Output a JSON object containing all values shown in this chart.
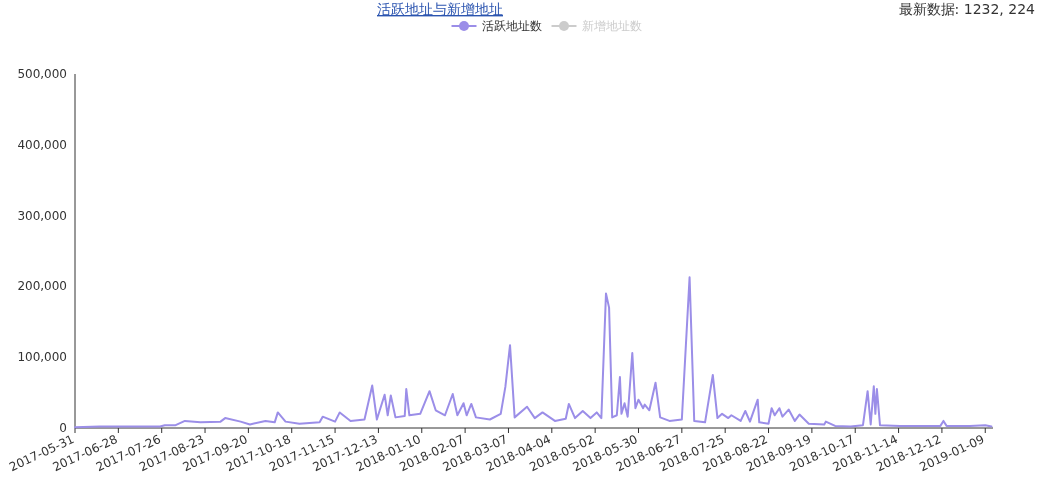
{
  "chart_data": {
    "type": "line",
    "title": "活跃地址与新增地址",
    "annotations": [
      "最新数据: 1232, 224"
    ],
    "x": [
      "2017-05-31",
      "2017-06-16",
      "2017-07-25",
      "2017-07-28",
      "2017-08-04",
      "2017-08-10",
      "2017-08-20",
      "2017-09-02",
      "2017-09-05",
      "2017-09-15",
      "2017-09-21",
      "2017-10-01",
      "2017-10-07",
      "2017-10-09",
      "2017-10-14",
      "2017-10-23",
      "2017-11-05",
      "2017-11-07",
      "2017-11-15",
      "2017-11-18",
      "2017-11-25",
      "2017-12-04",
      "2017-12-09",
      "2017-12-12",
      "2017-12-17",
      "2017-12-19",
      "2017-12-21",
      "2017-12-24",
      "2017-12-30",
      "2017-12-31",
      "2018-01-02",
      "2018-01-09",
      "2018-01-15",
      "2018-01-19",
      "2018-01-25",
      "2018-01-30",
      "2018-02-02",
      "2018-02-06",
      "2018-02-08",
      "2018-02-11",
      "2018-02-14",
      "2018-02-23",
      "2018-03-02",
      "2018-03-05",
      "2018-03-08",
      "2018-03-11",
      "2018-03-19",
      "2018-03-24",
      "2018-03-29",
      "2018-04-06",
      "2018-04-13",
      "2018-04-15",
      "2018-04-19",
      "2018-04-24",
      "2018-04-29",
      "2018-05-03",
      "2018-05-06",
      "2018-05-09",
      "2018-05-11",
      "2018-05-13",
      "2018-05-16",
      "2018-05-18",
      "2018-05-19",
      "2018-05-21",
      "2018-05-23",
      "2018-05-26",
      "2018-05-28",
      "2018-05-30",
      "2018-06-02",
      "2018-06-03",
      "2018-06-06",
      "2018-06-10",
      "2018-06-13",
      "2018-06-19",
      "2018-06-27",
      "2018-07-02",
      "2018-07-05",
      "2018-07-12",
      "2018-07-17",
      "2018-07-20",
      "2018-07-23",
      "2018-07-27",
      "2018-07-29",
      "2018-08-04",
      "2018-08-07",
      "2018-08-10",
      "2018-08-15",
      "2018-08-16",
      "2018-08-22",
      "2018-08-24",
      "2018-08-26",
      "2018-08-29",
      "2018-08-31",
      "2018-09-04",
      "2018-09-08",
      "2018-09-11",
      "2018-09-17",
      "2018-09-27",
      "2018-09-28",
      "2018-10-04",
      "2018-10-14",
      "2018-10-22",
      "2018-10-25",
      "2018-10-27",
      "2018-10-29",
      "2018-10-30",
      "2018-10-31",
      "2018-11-02",
      "2018-11-15",
      "2018-12-11",
      "2018-12-13",
      "2018-12-15",
      "2018-12-30",
      "2019-01-09",
      "2019-01-13"
    ],
    "series": [
      {
        "name": "活跃地址数",
        "color": "#9b8ee8",
        "values": [
          1000,
          2000,
          2000,
          4000,
          4000,
          10000,
          8000,
          9000,
          14000,
          9000,
          5000,
          10000,
          8000,
          22000,
          9000,
          6000,
          8000,
          16000,
          9000,
          22000,
          10000,
          12000,
          60000,
          12000,
          47000,
          18000,
          46000,
          15000,
          17000,
          55000,
          18000,
          20000,
          52000,
          25000,
          18000,
          48000,
          18000,
          35000,
          18000,
          34000,
          15000,
          12000,
          20000,
          58000,
          117000,
          15000,
          30000,
          14000,
          22000,
          10000,
          13000,
          34000,
          14000,
          24000,
          14000,
          22000,
          14000,
          190000,
          170000,
          15000,
          18000,
          72000,
          20000,
          35000,
          16000,
          106000,
          28000,
          40000,
          28000,
          33000,
          25000,
          64000,
          15000,
          10000,
          12000,
          213000,
          10000,
          8000,
          75000,
          14000,
          20000,
          14000,
          18000,
          10000,
          24000,
          9000,
          40000,
          8000,
          6000,
          28000,
          18000,
          28000,
          16000,
          26000,
          10000,
          19000,
          6000,
          5000,
          9000,
          3000,
          2000,
          4000,
          52000,
          5000,
          59000,
          20000,
          55000,
          4000,
          3000,
          3000,
          10000,
          3000,
          3000,
          4000,
          2000
        ]
      },
      {
        "name": "新增地址数",
        "color": "#cccccc",
        "values": [
          null,
          null,
          null,
          null,
          null,
          null,
          null,
          null,
          null,
          null,
          null,
          null,
          null,
          null,
          null,
          null,
          null,
          null,
          null,
          null,
          null,
          null,
          null,
          null,
          null,
          null,
          null,
          null,
          null,
          null,
          null,
          null,
          null,
          null,
          null,
          null,
          null,
          null,
          null,
          null,
          null,
          null,
          null,
          null,
          null,
          null,
          null,
          null,
          null,
          null,
          null,
          null,
          null,
          null,
          null,
          null,
          null,
          null,
          null,
          null,
          null,
          null,
          null,
          null,
          null,
          null,
          null,
          null,
          null,
          null,
          null,
          null,
          null,
          null,
          null,
          null,
          null,
          null,
          null,
          null,
          null,
          null,
          null,
          null,
          null,
          null,
          null,
          null,
          null,
          null,
          null,
          null,
          null,
          null,
          null,
          null,
          null,
          null,
          null,
          null,
          null,
          null,
          null,
          null,
          null,
          null,
          null,
          null,
          null,
          null,
          null,
          null,
          null,
          null,
          null
        ]
      }
    ],
    "xlim": [
      "2017-05-31",
      "2019-01-14"
    ],
    "xticks": [
      "2017-05-31",
      "2017-06-28",
      "2017-07-26",
      "2017-08-23",
      "2017-09-20",
      "2017-10-18",
      "2017-11-15",
      "2017-12-13",
      "2018-01-10",
      "2018-02-07",
      "2018-03-07",
      "2018-04-04",
      "2018-05-02",
      "2018-05-30",
      "2018-06-27",
      "2018-07-25",
      "2018-08-22",
      "2018-09-19",
      "2018-10-17",
      "2018-11-14",
      "2018-12-12",
      "2019-01-09"
    ],
    "ylim": [
      0,
      500000
    ],
    "yticks": [
      {
        "value": 0,
        "label": "0"
      },
      {
        "value": 100000,
        "label": "100,000"
      },
      {
        "value": 200000,
        "label": "200,000"
      },
      {
        "value": 300000,
        "label": "300,000"
      },
      {
        "value": 400000,
        "label": "400,000"
      },
      {
        "value": 500000,
        "label": "500,000"
      }
    ],
    "legend": "top"
  }
}
